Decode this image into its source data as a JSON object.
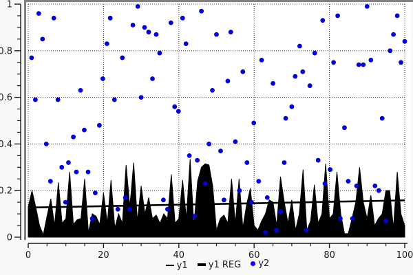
{
  "legend": {
    "items": [
      {
        "label": "y1",
        "marker": "thin-line",
        "color": "#000000"
      },
      {
        "label": "y1 REG",
        "marker": "thick-line",
        "color": "#000000"
      },
      {
        "label": "y2",
        "marker": "dot",
        "color": "#0000dd"
      }
    ]
  },
  "colors": {
    "page_bg": "#f8f8f8",
    "plot_bg": "#ffffff",
    "frame": "#808080",
    "grid": "#333333",
    "axis": "#1a1a1a",
    "area": "#000000",
    "reg_line": "#000000",
    "scatter": "#0000dd"
  },
  "chart_data": {
    "type": "combo",
    "title": "",
    "xlabel": "",
    "ylabel": "",
    "xlim": [
      0,
      100
    ],
    "ylim": [
      0,
      1
    ],
    "x_tick_values": [
      0,
      20,
      40,
      60,
      80,
      100
    ],
    "x_tick_labels": [
      "0",
      "20",
      "40",
      "60",
      "80",
      "100"
    ],
    "y_tick_values": [
      1,
      0.8,
      0.6,
      0.4,
      0.2,
      0
    ],
    "y_tick_labels": [
      "1",
      "0.8",
      "0.6",
      "0.4",
      "0.2",
      "0"
    ],
    "x_minor_step": 5,
    "y_minor_step": 0.05,
    "grid": "dotted-major",
    "legend_position": "bottom-center",
    "series": [
      {
        "name": "y1",
        "type": "area",
        "x_start": 0,
        "x_step": 1,
        "values": [
          0.13,
          0.2,
          0.13,
          0.05,
          0.01,
          0.09,
          0.165,
          0.05,
          0.235,
          0.06,
          0.08,
          0.28,
          0.055,
          0.075,
          0.08,
          0.25,
          0.02,
          0.1,
          0.09,
          0.055,
          0.19,
          0.06,
          0.245,
          0.04,
          0.1,
          0.06,
          0.31,
          0.13,
          0.32,
          0.07,
          0.22,
          0.1,
          0.17,
          0.08,
          0.095,
          0.06,
          0.1,
          0.08,
          0.27,
          0.06,
          0.08,
          0.245,
          0.08,
          0.335,
          0.05,
          0.24,
          0.3,
          0.315,
          0.31,
          0.22,
          0.03,
          0.08,
          0.095,
          0.06,
          0.25,
          0.06,
          0.25,
          0.04,
          0.14,
          0.21,
          0.05,
          0.03,
          0.07,
          0.1,
          0.16,
          0.15,
          0.05,
          0.26,
          0.15,
          0.06,
          0.16,
          0.03,
          0.1,
          0.29,
          0.03,
          0.07,
          0.225,
          0.06,
          0.1,
          0.315,
          0.08,
          0.1,
          0.28,
          0.1,
          0.015,
          0.015,
          0.08,
          0.15,
          0.3,
          0.15,
          0.08,
          0.18,
          0.05,
          0.08,
          0.1,
          0.2,
          0.2,
          0.04,
          0.28,
          0.1,
          0.05
        ]
      },
      {
        "name": "y1 REG",
        "type": "line",
        "points": [
          [
            0,
            0.127
          ],
          [
            100,
            0.158
          ]
        ]
      },
      {
        "name": "y2",
        "type": "scatter",
        "points": [
          [
            0.9,
            0.77
          ],
          [
            1.9,
            0.59
          ],
          [
            2.8,
            0.96
          ],
          [
            3.8,
            0.85
          ],
          [
            4.8,
            0.4
          ],
          [
            5.9,
            0.24
          ],
          [
            6.8,
            0.94
          ],
          [
            7.9,
            0.59
          ],
          [
            8.9,
            0.3
          ],
          [
            9.9,
            0.15
          ],
          [
            10.7,
            0.32
          ],
          [
            12,
            0.43
          ],
          [
            12.8,
            0.28
          ],
          [
            13.9,
            0.63
          ],
          [
            14.9,
            0.46
          ],
          [
            15.9,
            0.28
          ],
          [
            17,
            0.08
          ],
          [
            17.8,
            0.19
          ],
          [
            18.9,
            0.48
          ],
          [
            19.8,
            0.68
          ],
          [
            20.9,
            0.83
          ],
          [
            21.8,
            0.94
          ],
          [
            22.9,
            0.59
          ],
          [
            23.8,
            0.12
          ],
          [
            25,
            0.77
          ],
          [
            25.8,
            0.17
          ],
          [
            26.9,
            0.12
          ],
          [
            27.8,
            0.91
          ],
          [
            29.1,
            0.99
          ],
          [
            30,
            0.6
          ],
          [
            30.9,
            0.9
          ],
          [
            32,
            0.88
          ],
          [
            33,
            0.68
          ],
          [
            34,
            0.87
          ],
          [
            34.9,
            0.79
          ],
          [
            35.9,
            0.16
          ],
          [
            37,
            0.12
          ],
          [
            37.9,
            0.92
          ],
          [
            38.9,
            0.56
          ],
          [
            39.9,
            0.54
          ],
          [
            41,
            0.94
          ],
          [
            41.9,
            0.83
          ],
          [
            42.8,
            0.35
          ],
          [
            44.2,
            0.09
          ],
          [
            44.9,
            0.33
          ],
          [
            46,
            0.97
          ],
          [
            47,
            0.23
          ],
          [
            48,
            0.4
          ],
          [
            48.9,
            0.63
          ],
          [
            50,
            0.87
          ],
          [
            51.1,
            0.37
          ],
          [
            52,
            0.16
          ],
          [
            53,
            0.67
          ],
          [
            53.8,
            0.88
          ],
          [
            55,
            0.41
          ],
          [
            56.1,
            0.2
          ],
          [
            57,
            0.71
          ],
          [
            58.1,
            0.32
          ],
          [
            59.3,
            0.15
          ],
          [
            59.9,
            0.49
          ],
          [
            61.2,
            0.24
          ],
          [
            62,
            0.76
          ],
          [
            63,
            0.02
          ],
          [
            63.5,
            0.17
          ],
          [
            65,
            0.66
          ],
          [
            65.9,
            0.03
          ],
          [
            67,
            0.11
          ],
          [
            68,
            0.32
          ],
          [
            68.4,
            0.51
          ],
          [
            70,
            0.56
          ],
          [
            70.9,
            0.69
          ],
          [
            72.1,
            0.82
          ],
          [
            72.9,
            0.71
          ],
          [
            73.9,
            0.03
          ],
          [
            74.8,
            0.65
          ],
          [
            76.1,
            0.79
          ],
          [
            77,
            0.33
          ],
          [
            78.2,
            0.93
          ],
          [
            78.8,
            0.23
          ],
          [
            80.2,
            0.29
          ],
          [
            81.1,
            0.75
          ],
          [
            82.2,
            0.95
          ],
          [
            82.9,
            0.08
          ],
          [
            84,
            0.47
          ],
          [
            85,
            0.24
          ],
          [
            86.1,
            0.08
          ],
          [
            87.2,
            0.22
          ],
          [
            87.8,
            0.74
          ],
          [
            89,
            0.74
          ],
          [
            90,
            0.99
          ],
          [
            91,
            0.76
          ],
          [
            92.1,
            0.22
          ],
          [
            93.1,
            0.2
          ],
          [
            94,
            0.51
          ],
          [
            95,
            0.07
          ],
          [
            96.1,
            0.8
          ],
          [
            97,
            0.87
          ],
          [
            98,
            0.95
          ],
          [
            99,
            0.75
          ],
          [
            100,
            0.84
          ]
        ]
      }
    ]
  }
}
